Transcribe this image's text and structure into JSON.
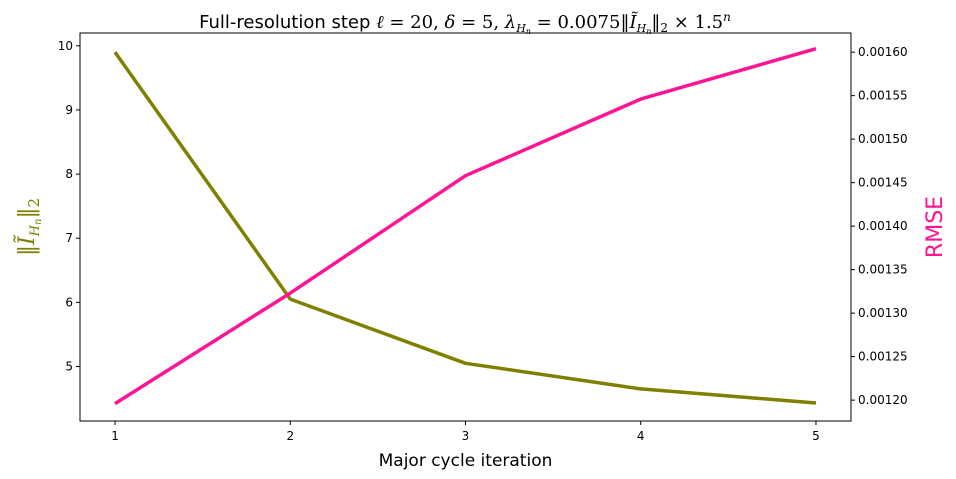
{
  "chart_data": {
    "type": "line",
    "title": {
      "prefix": "Full-resolution step ",
      "formula_parts": [
        "ℓ",
        " = 20, ",
        "δ",
        " = 5, ",
        "λ",
        "H",
        "n",
        " = 0.0075‖",
        "Ĩ",
        "H",
        "n",
        "‖",
        "2",
        " × 1.5",
        "n"
      ]
    },
    "xlabel": "Major cycle iteration",
    "ylabel_left": {
      "open": "‖",
      "symbol": "Ĩ",
      "sub_script": "H",
      "sub_sub": "n",
      "close": "‖",
      "norm": "2"
    },
    "ylabel_right": "RMSE",
    "x": [
      1,
      2,
      3,
      4,
      5
    ],
    "xlim": [
      0.8,
      5.2
    ],
    "xticks": [
      "1",
      "2",
      "3",
      "4",
      "5"
    ],
    "left_axis": {
      "ylim": [
        4.15,
        10.2
      ],
      "ticks": [
        5,
        6,
        7,
        8,
        9,
        10
      ],
      "tick_labels": [
        "5",
        "6",
        "7",
        "8",
        "9",
        "10"
      ]
    },
    "right_axis": {
      "ylim": [
        0.001176,
        0.001622
      ],
      "ticks": [
        0.0012,
        0.00125,
        0.0013,
        0.00135,
        0.0014,
        0.00145,
        0.0015,
        0.00155,
        0.0016
      ],
      "tick_labels": [
        "0.00120",
        "0.00125",
        "0.00130",
        "0.00135",
        "0.00140",
        "0.00145",
        "0.00150",
        "0.00155",
        "0.00160"
      ]
    },
    "series": [
      {
        "axis": "left",
        "color": "#808000",
        "values": [
          9.9,
          6.05,
          5.05,
          4.65,
          4.43
        ]
      },
      {
        "axis": "right",
        "color": "#ff1493",
        "values": [
          0.001196,
          0.001323,
          0.001458,
          0.001546,
          0.001604
        ]
      }
    ],
    "grid": false
  }
}
